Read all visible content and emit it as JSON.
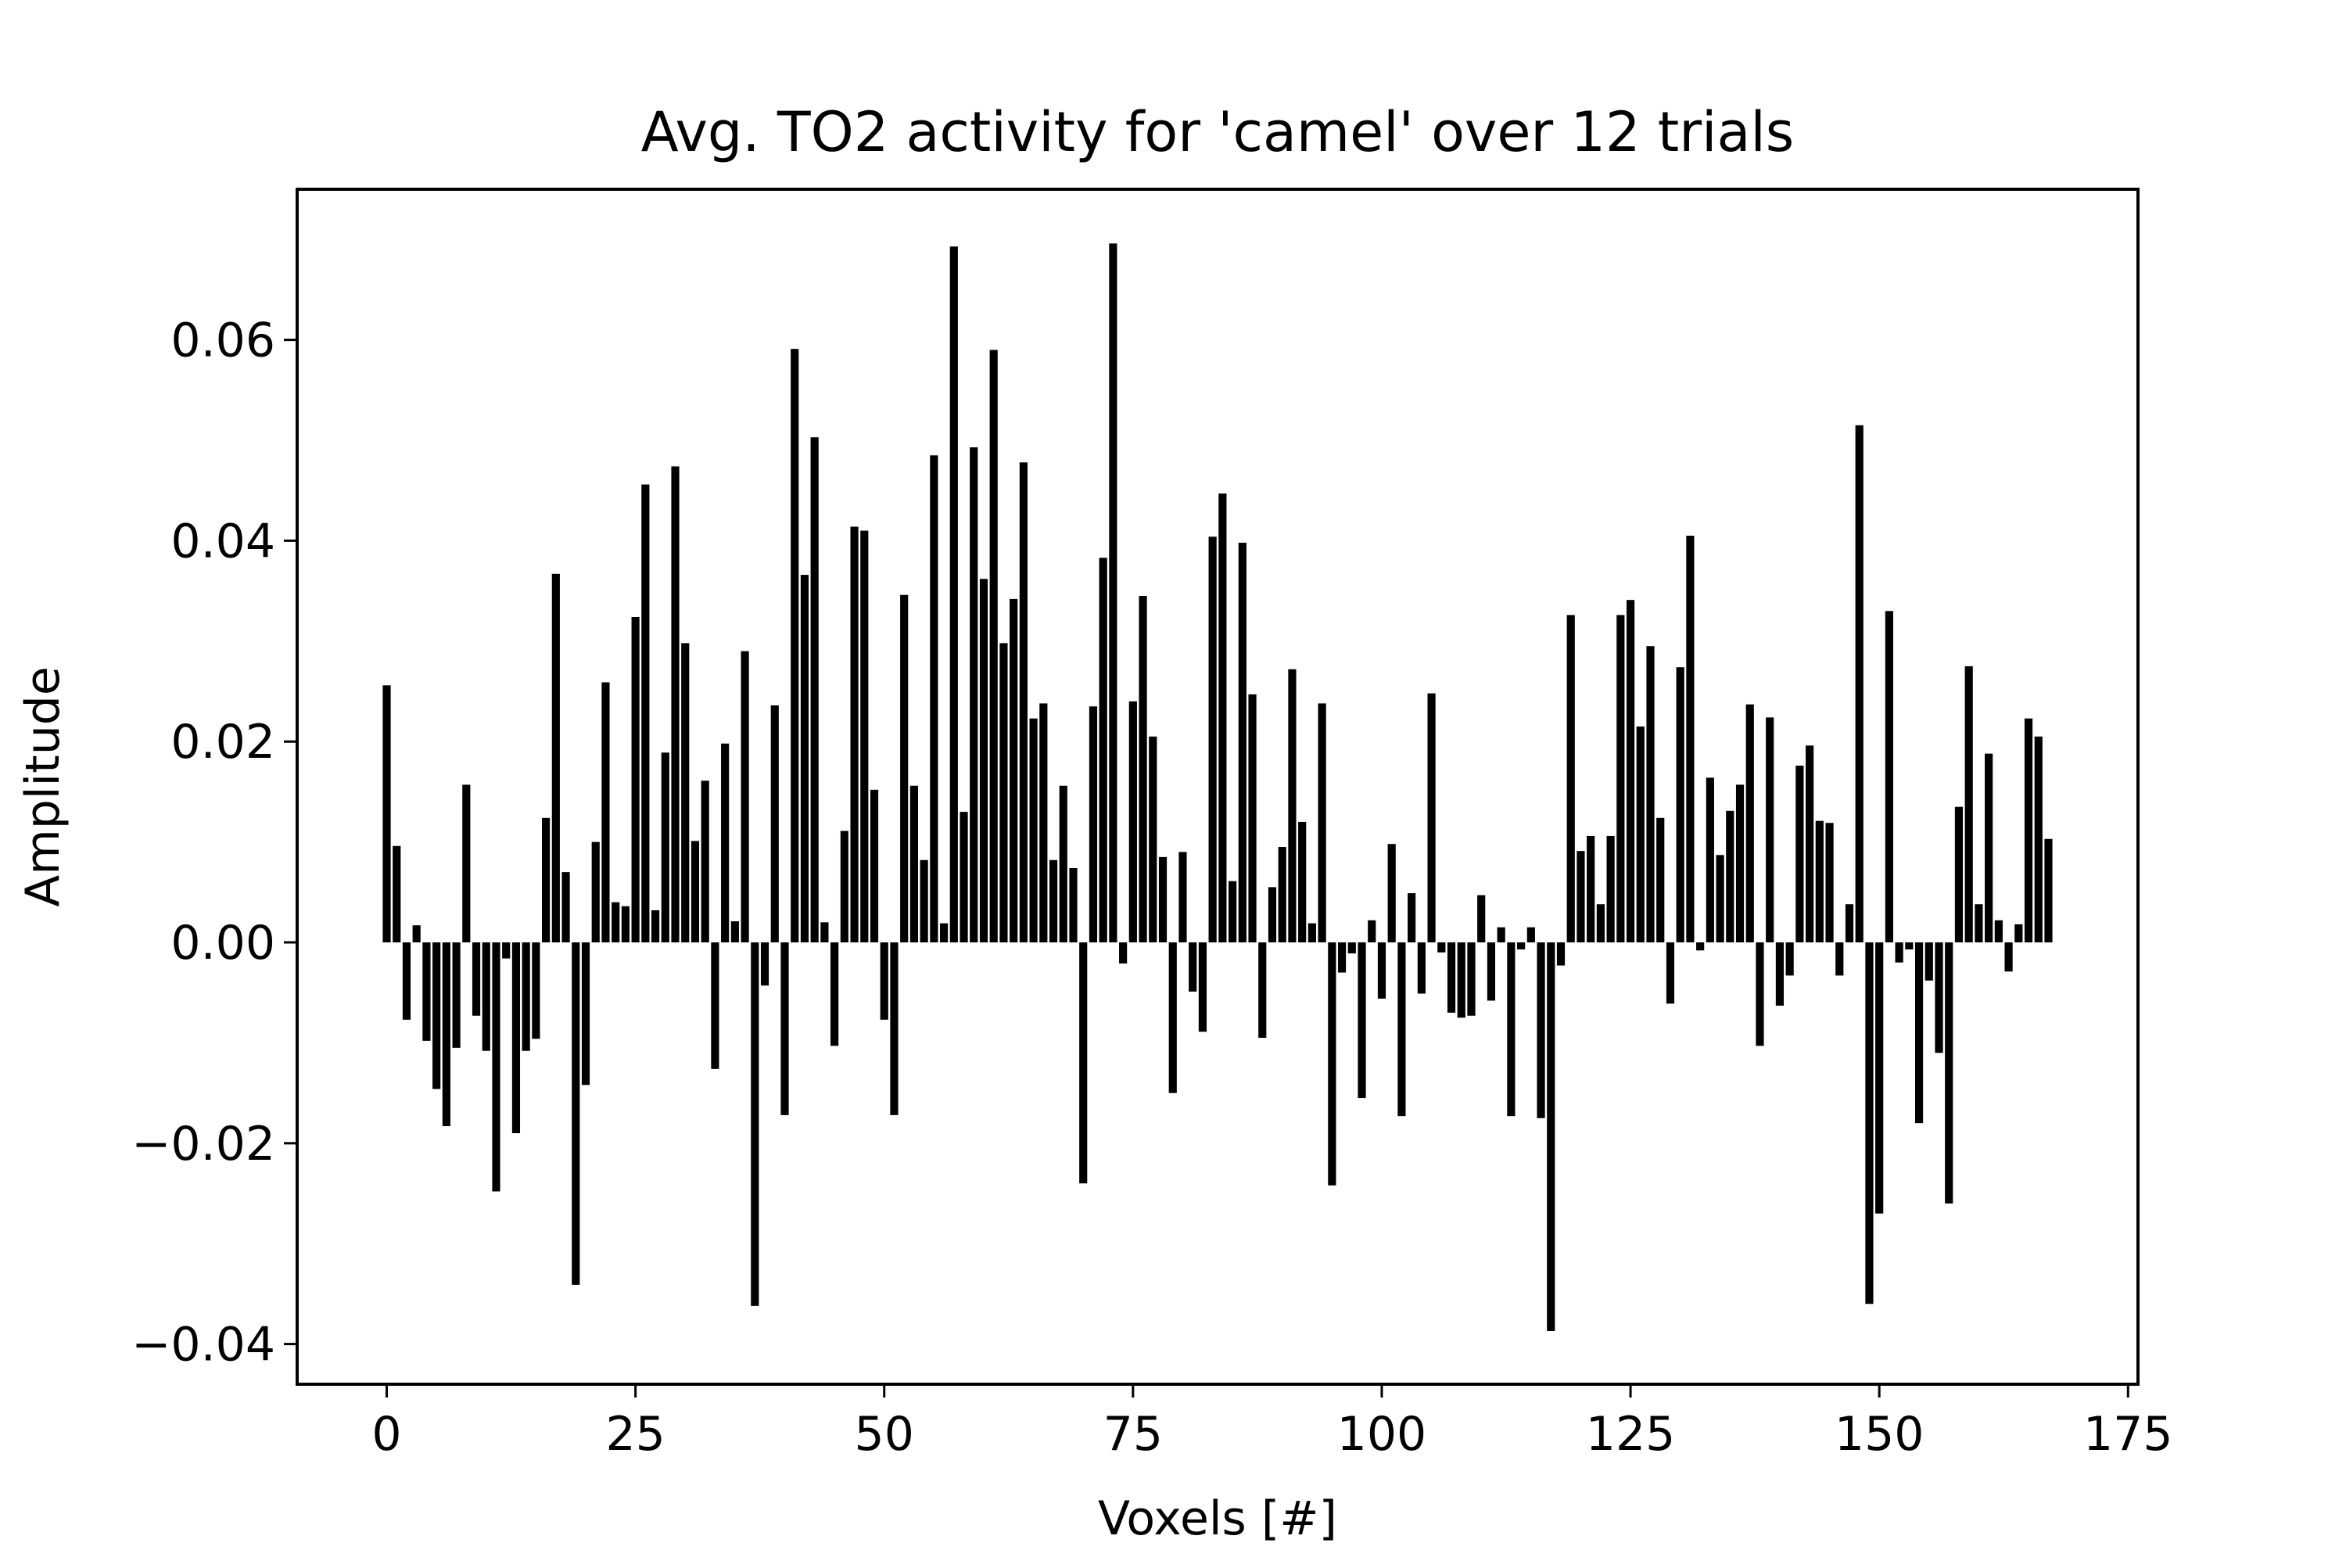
{
  "chart_data": {
    "type": "bar",
    "title": "Avg. TO2 activity for 'camel' over 12 trials",
    "xlabel": "Voxels [#]",
    "ylabel": "Amplitude",
    "xlim": [
      -9,
      176
    ],
    "ylim": [
      -0.044,
      0.075
    ],
    "x_ticks": [
      0,
      25,
      50,
      75,
      100,
      125,
      150,
      175
    ],
    "x_tick_labels": [
      "0",
      "25",
      "50",
      "75",
      "100",
      "125",
      "150",
      "175"
    ],
    "y_ticks": [
      -0.04,
      -0.02,
      0.0,
      0.02,
      0.04,
      0.06
    ],
    "y_tick_labels": [
      "−0.04",
      "−0.02",
      "0.00",
      "0.02",
      "0.04",
      "0.06"
    ],
    "grid": false,
    "bar_color": "#000000",
    "bar_width": 0.8,
    "values": [
      0.0256,
      0.0096,
      -0.0077,
      0.0017,
      -0.0098,
      -0.0146,
      -0.0183,
      -0.0105,
      0.0157,
      -0.0073,
      -0.0108,
      -0.0248,
      -0.0016,
      -0.019,
      -0.0108,
      -0.0096,
      0.0124,
      0.0367,
      0.007,
      -0.0341,
      -0.0142,
      0.01,
      0.0259,
      0.004,
      0.0036,
      0.0324,
      0.0456,
      0.0032,
      0.0189,
      0.0474,
      0.0298,
      0.0101,
      0.0161,
      -0.0126,
      0.0198,
      0.0021,
      0.029,
      -0.0362,
      -0.0043,
      0.0236,
      -0.0172,
      0.0591,
      0.0366,
      0.0503,
      0.002,
      -0.0103,
      0.0111,
      0.0414,
      0.041,
      0.0152,
      -0.0077,
      -0.0172,
      0.0346,
      0.0156,
      0.0082,
      0.0485,
      0.0019,
      0.0693,
      0.013,
      0.0493,
      0.0362,
      0.059,
      0.0298,
      0.0342,
      0.0478,
      0.0223,
      0.0238,
      0.0082,
      0.0156,
      0.0074,
      -0.024,
      0.0235,
      0.0383,
      0.0696,
      -0.0021,
      0.024,
      0.0345,
      0.0205,
      0.0085,
      -0.015,
      0.009,
      -0.0049,
      -0.0089,
      0.0404,
      0.0447,
      0.0061,
      0.0398,
      0.0247,
      -0.0095,
      0.0055,
      0.0095,
      0.0272,
      0.012,
      0.0019,
      0.0238,
      -0.0242,
      -0.003,
      -0.0011,
      -0.0155,
      0.0022,
      -0.0056,
      0.0098,
      -0.0173,
      0.0049,
      -0.0051,
      0.0248,
      -0.001,
      -0.007,
      -0.0075,
      -0.0073,
      0.0047,
      -0.0058,
      0.0015,
      -0.0173,
      -0.0007,
      0.0015,
      -0.0175,
      -0.0387,
      -0.0023,
      0.0326,
      0.0091,
      0.0106,
      0.0038,
      0.0106,
      0.0326,
      0.0341,
      0.0215,
      0.0295,
      0.0124,
      -0.0061,
      0.0274,
      0.0405,
      -0.0008,
      0.0164,
      0.0087,
      0.0131,
      0.0157,
      0.0237,
      -0.0103,
      0.0224,
      -0.0063,
      -0.0033,
      0.0176,
      0.0196,
      0.0121,
      0.0119,
      -0.0033,
      0.0038,
      0.0515,
      -0.036,
      -0.027,
      0.033,
      -0.002,
      -0.0007,
      -0.018,
      -0.0038,
      -0.011,
      -0.026,
      0.0135,
      0.0275,
      0.0038,
      0.0188,
      0.0022,
      -0.0029,
      0.0018,
      0.0223,
      0.0205,
      0.0103
    ]
  }
}
